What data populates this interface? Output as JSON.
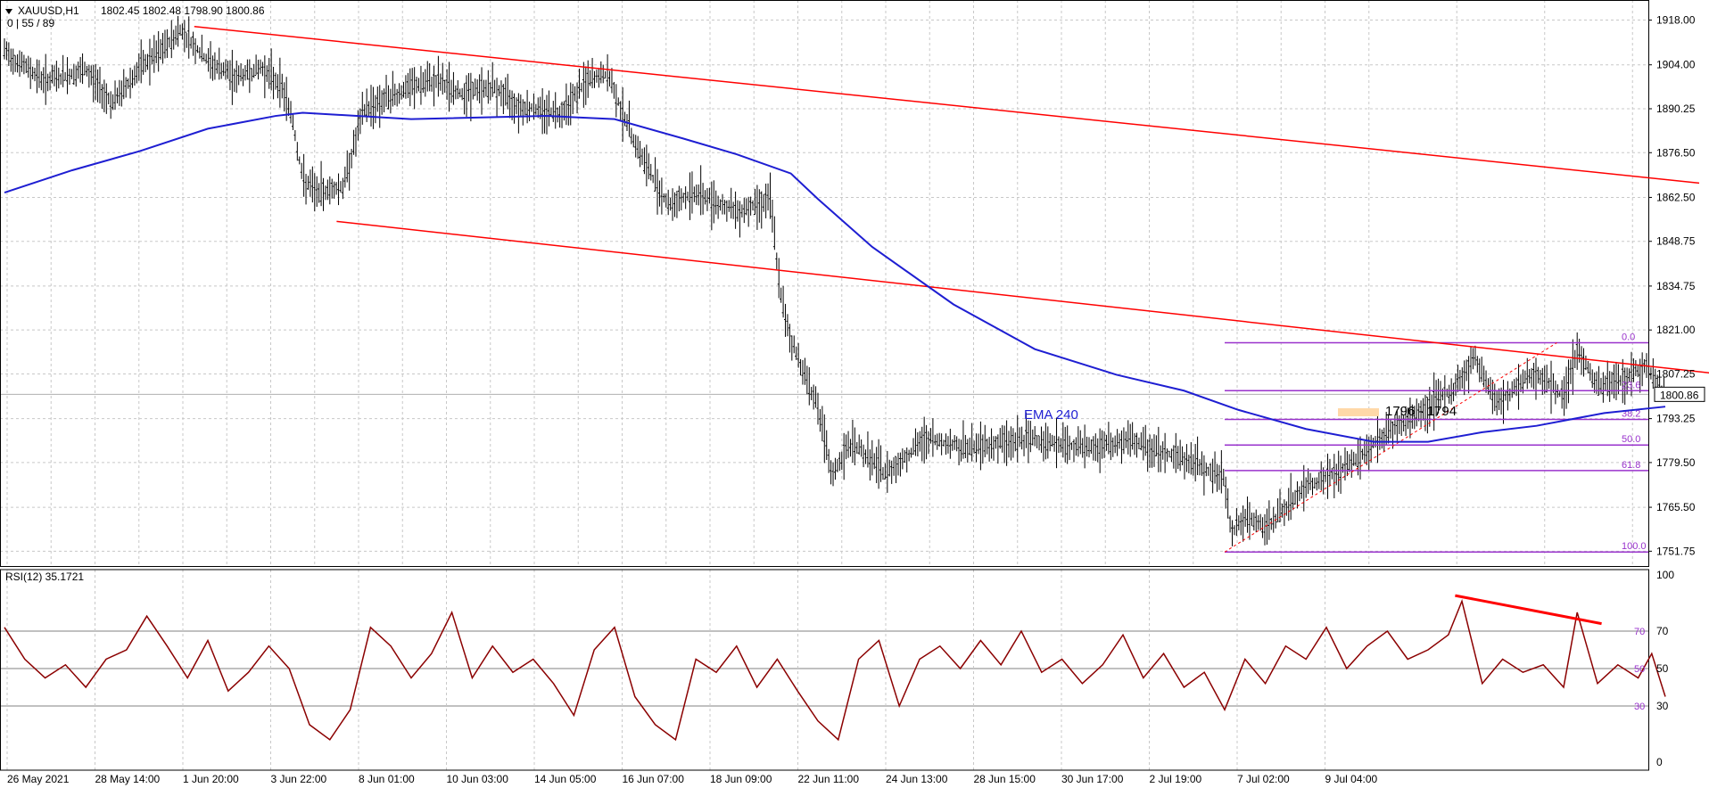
{
  "header": {
    "symbol": "XAUUSD,H1",
    "ohlc": "1802.45 1802.48 1798.90 1800.86",
    "ma_info": "0 | 55 / 89"
  },
  "rsi_header": "RSI(12) 35.1721",
  "current_price_label": "1800.86",
  "annotations": {
    "ema_label": "EMA 240",
    "zone_label": "1796 - 1794"
  },
  "fib_labels": [
    "0.0",
    "23.6",
    "38.2",
    "50.0",
    "61.8",
    "100.0"
  ],
  "colors": {
    "bars": "#000000",
    "ema": "#1E1ED2",
    "trendline": "#FF0000",
    "fib": "#9932CC",
    "rsi": "#8B0000",
    "grid": "#C8C8C8",
    "zone": "#FFD8A8"
  },
  "chart_data": [
    {
      "type": "line",
      "subtype": "ohlc-bars",
      "title": "XAUUSD,H1",
      "x_ticks": [
        "26 May 2021",
        "28 May 14:00",
        "1 Jun 20:00",
        "3 Jun 22:00",
        "8 Jun 01:00",
        "10 Jun 03:00",
        "14 Jun 05:00",
        "16 Jun 07:00",
        "18 Jun 09:00",
        "22 Jun 11:00",
        "24 Jun 13:00",
        "28 Jun 15:00",
        "30 Jun 17:00",
        "2 Jul 19:00",
        "7 Jul 02:00",
        "9 Jul 04:00"
      ],
      "y_ticks": [
        1918.0,
        1904.0,
        1890.25,
        1876.5,
        1862.5,
        1848.75,
        1834.75,
        1821.0,
        1807.25,
        1793.25,
        1779.5,
        1765.5,
        1751.75
      ],
      "ylim": [
        1748.5,
        1921.5
      ],
      "grid": true,
      "series": [
        {
          "name": "",
          "x": [
            0,
            30,
            60,
            80,
            100,
            115,
            130,
            150,
            170,
            190,
            205,
            212,
            220,
            230,
            250,
            265,
            280,
            300,
            320,
            335,
            360,
            380,
            410,
            430,
            445,
            455,
            470,
            490,
            510,
            540,
            565,
            573,
            580,
            600,
            610,
            625,
            650,
            680,
            710,
            740,
            760,
            780,
            800,
            830,
            860,
            880,
            900,
            905,
            915,
            930,
            960,
            990,
            1020,
            1040,
            1070,
            1085,
            1100,
            1130,
            1150,
            1160,
            1175,
            1195,
            1210,
            1225
          ],
          "values": [
            1908,
            1899,
            1902,
            1892,
            1903,
            1908,
            1915,
            1905,
            1900,
            1903,
            1897,
            1888,
            1868,
            1864,
            1866,
            1890,
            1893,
            1897,
            1899,
            1895,
            1897,
            1891,
            1889,
            1899,
            1901,
            1890,
            1875,
            1860,
            1864,
            1858,
            1862,
            1830,
            1818,
            1797,
            1775,
            1786,
            1776,
            1787,
            1784,
            1786,
            1787,
            1785,
            1784,
            1786,
            1782,
            1779,
            1774,
            1758,
            1762,
            1759,
            1772,
            1778,
            1789,
            1794,
            1803,
            1812,
            1798,
            1808,
            1800,
            1815,
            1803,
            1806,
            1810,
            1801
          ]
        },
        {
          "name": "EMA 240",
          "x": [
            0,
            50,
            100,
            150,
            200,
            220,
            300,
            400,
            450,
            500,
            540,
            580,
            600,
            640,
            700,
            760,
            820,
            870,
            910,
            960,
            1010,
            1050,
            1090,
            1130,
            1180,
            1225
          ],
          "values": [
            1864,
            1871,
            1877,
            1884,
            1888,
            1889,
            1887,
            1888,
            1887,
            1881,
            1876,
            1870,
            1862,
            1847,
            1829,
            1815,
            1807,
            1802,
            1796,
            1790,
            1786,
            1786,
            1789,
            1791,
            1795,
            1797
          ]
        }
      ],
      "trendlines": [
        {
          "from": [
            140,
            1916
          ],
          "to": [
            1250,
            1867
          ]
        },
        {
          "from": [
            245,
            1855
          ],
          "to": [
            1355,
            1803
          ]
        }
      ],
      "fibonacci": {
        "levels": [
          {
            "label": "0.0",
            "price": 1817
          },
          {
            "label": "23.6",
            "price": 1802
          },
          {
            "label": "38.2",
            "price": 1793
          },
          {
            "label": "50.0",
            "price": 1785
          },
          {
            "label": "61.8",
            "price": 1777
          },
          {
            "label": "100.0",
            "price": 1751.5
          }
        ]
      },
      "price_markers": {
        "current": 1800.86
      }
    },
    {
      "type": "line",
      "title": "RSI(12) 35.1721",
      "y_ticks": [
        100,
        70,
        50,
        30,
        0
      ],
      "ylim": [
        0,
        100
      ],
      "series": [
        {
          "name": "RSI(12)",
          "x": [
            0,
            15,
            30,
            45,
            60,
            75,
            90,
            105,
            120,
            135,
            150,
            165,
            180,
            195,
            210,
            225,
            240,
            255,
            270,
            285,
            300,
            315,
            330,
            345,
            360,
            375,
            390,
            405,
            420,
            435,
            450,
            465,
            480,
            495,
            510,
            525,
            540,
            555,
            570,
            585,
            600,
            615,
            630,
            645,
            660,
            675,
            690,
            705,
            720,
            735,
            750,
            765,
            780,
            795,
            810,
            825,
            840,
            855,
            870,
            885,
            900,
            915,
            930,
            945,
            960,
            975,
            990,
            1005,
            1020,
            1035,
            1050,
            1065,
            1075,
            1090,
            1105,
            1120,
            1135,
            1150,
            1160,
            1175,
            1190,
            1205,
            1215,
            1225
          ],
          "values": [
            72,
            55,
            45,
            52,
            40,
            55,
            60,
            78,
            62,
            45,
            65,
            38,
            48,
            62,
            50,
            20,
            12,
            28,
            72,
            62,
            45,
            58,
            80,
            45,
            62,
            48,
            55,
            42,
            25,
            60,
            72,
            35,
            20,
            12,
            55,
            48,
            62,
            40,
            55,
            38,
            22,
            12,
            55,
            65,
            30,
            55,
            62,
            50,
            65,
            52,
            70,
            48,
            55,
            42,
            52,
            68,
            45,
            58,
            40,
            48,
            28,
            55,
            42,
            62,
            55,
            72,
            50,
            62,
            70,
            55,
            60,
            68,
            86,
            42,
            55,
            48,
            52,
            40,
            80,
            42,
            52,
            45,
            58,
            35
          ]
        }
      ],
      "divergence_line": {
        "from": [
          1070,
          89
        ],
        "to": [
          1178,
          74
        ]
      }
    }
  ]
}
